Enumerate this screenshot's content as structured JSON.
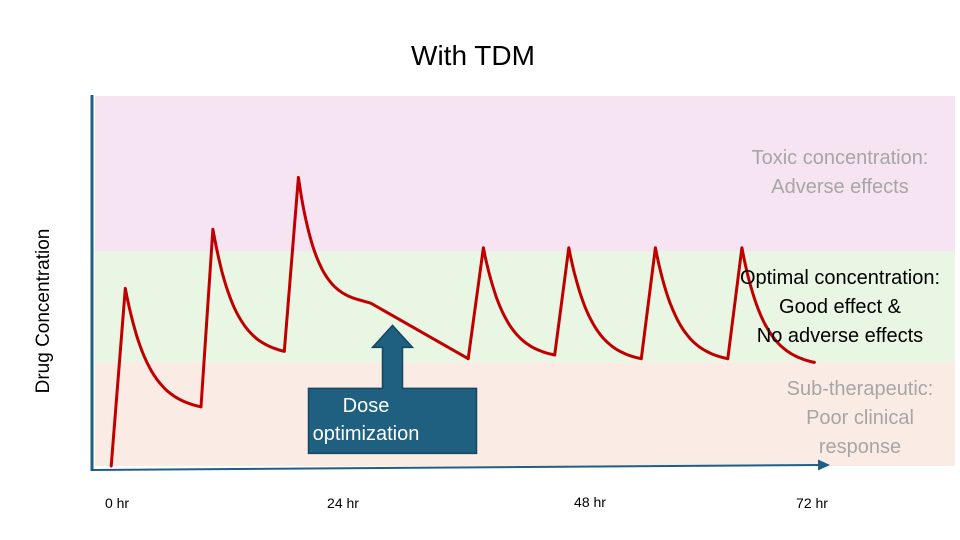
{
  "chart_data": {
    "type": "line",
    "title": "With TDM",
    "ylabel": "Drug Concentration",
    "xlabel": "",
    "x_ticks": [
      "0 hr",
      "24 hr",
      "48 hr",
      "72 hr"
    ],
    "x_tick_values": [
      0,
      24,
      48,
      72
    ],
    "xlim": [
      -1.5,
      78
    ],
    "ylim": [
      0,
      100
    ],
    "grid": false,
    "zones": [
      {
        "name": "toxic",
        "range": [
          58,
          100
        ],
        "color": "#f7e4f3",
        "label_lines": [
          "Toxic concentration:",
          "Adverse effects"
        ],
        "text_color": "#a6a6a6"
      },
      {
        "name": "optimal",
        "range": [
          28,
          58
        ],
        "color": "#eaf6e4",
        "label_lines": [
          "Optimal concentration:",
          "Good effect &",
          "No adverse effects"
        ],
        "text_color": "#000000"
      },
      {
        "name": "sub",
        "range": [
          0,
          28
        ],
        "color": "#fbebe5",
        "label_lines": [
          "Sub-therapeutic:",
          "Poor clinical",
          "response"
        ],
        "text_color": "#a6a6a6"
      }
    ],
    "series": [
      {
        "color": "#c00000",
        "doses": [
          {
            "t0": 0,
            "start": 0,
            "dur": 1.3,
            "peak": 48,
            "end": 16,
            "trough_t": 8.3
          },
          {
            "t0": 8.3,
            "start": 16,
            "dur": 1.1,
            "peak": 64,
            "end": 31,
            "trough_t": 16.0
          },
          {
            "t0": 16.0,
            "start": 31,
            "dur": 1.3,
            "peak": 78,
            "end": 45,
            "trough_t": 24.0,
            "plateau": true
          },
          {
            "t0": 33.0,
            "start": 29,
            "dur": 1.4,
            "peak": 59,
            "end": 30,
            "trough_t": 41.0
          },
          {
            "t0": 41.0,
            "start": 30,
            "dur": 1.3,
            "peak": 59,
            "end": 29,
            "trough_t": 49.0
          },
          {
            "t0": 49.0,
            "start": 29,
            "dur": 1.3,
            "peak": 59,
            "end": 29,
            "trough_t": 57.0
          },
          {
            "t0": 57.0,
            "start": 29,
            "dur": 1.3,
            "peak": 59,
            "end": 28,
            "trough_t": 65.0
          }
        ]
      }
    ],
    "callout": {
      "label_lines": [
        "Dose",
        "optimization"
      ],
      "fill": "#1f5f7f",
      "stroke": "#14475f",
      "points_to": {
        "t": 26,
        "y": 38
      }
    }
  }
}
